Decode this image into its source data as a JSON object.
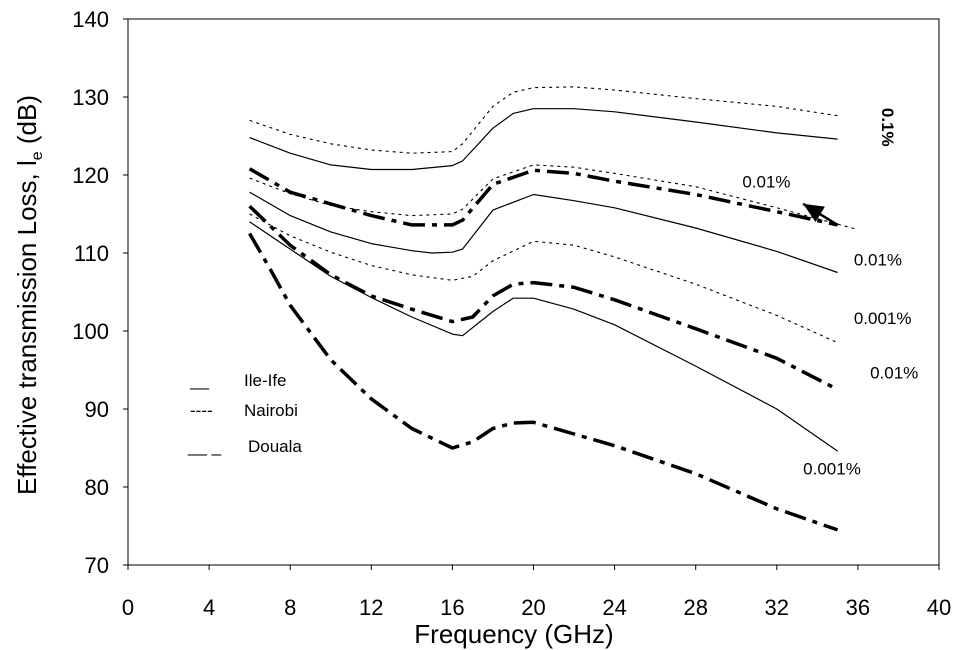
{
  "chart_data": {
    "type": "line",
    "title": "",
    "xlabel": "Frequency (GHz)",
    "ylabel": "Effective transmission Loss, l",
    "ylabel_sub": "e",
    "ylabel_unit": " (dB)",
    "xlim": [
      0,
      40
    ],
    "ylim": [
      70,
      140
    ],
    "xticks": [
      "0",
      "4",
      "8",
      "12",
      "16",
      "20",
      "24",
      "28",
      "32",
      "36",
      "40"
    ],
    "yticks": [
      "70",
      "80",
      "90",
      "100",
      "110",
      "120",
      "130",
      "140"
    ],
    "grid": false,
    "legend_position": "left",
    "legend": [
      {
        "name": "Ile-Ife",
        "marker": "__",
        "style": "solid"
      },
      {
        "name": "Nairobi",
        "marker": "----",
        "style": "dotted"
      },
      {
        "name": "Douala",
        "marker": "__ _",
        "style": "dashdot"
      }
    ],
    "series": [
      {
        "style": "dotted",
        "x": [
          6,
          8,
          10,
          12,
          14,
          16,
          16.5,
          18,
          19,
          20,
          22,
          24,
          28,
          32,
          35
        ],
        "y": [
          127,
          125.2,
          124,
          123.2,
          122.8,
          123,
          124,
          128.8,
          130.6,
          131.2,
          131.3,
          130.9,
          129.8,
          128.8,
          127.6
        ]
      },
      {
        "style": "solid",
        "x": [
          6,
          8,
          10,
          12,
          14,
          16,
          16.5,
          18,
          19,
          20,
          22,
          24,
          28,
          32,
          35
        ],
        "y": [
          124.8,
          122.8,
          121.3,
          120.7,
          120.7,
          121.2,
          121.8,
          126,
          127.9,
          128.5,
          128.5,
          128.1,
          126.8,
          125.4,
          124.6
        ]
      },
      {
        "style": "dotted",
        "x": [
          6,
          8,
          10,
          12,
          14,
          16,
          16.5,
          18,
          20,
          22,
          24,
          28,
          32,
          36
        ],
        "y": [
          119.6,
          117.6,
          116.1,
          115.3,
          114.8,
          115,
          115.6,
          119.5,
          121.3,
          121,
          120.2,
          118.5,
          115.8,
          113
        ]
      },
      {
        "style": "dashdot",
        "x": [
          6,
          8,
          10,
          12,
          14,
          16,
          16.5,
          18,
          20,
          22,
          24,
          28,
          32,
          35
        ],
        "y": [
          120.8,
          117.8,
          116.3,
          114.8,
          113.6,
          113.6,
          114.2,
          118.8,
          120.6,
          120.2,
          119.2,
          117.5,
          115.3,
          113.6
        ]
      },
      {
        "style": "solid",
        "x": [
          6,
          8,
          10,
          12,
          14,
          15,
          16,
          16.5,
          18,
          20,
          22,
          24,
          28,
          32,
          35
        ],
        "y": [
          117.8,
          114.8,
          112.7,
          111.2,
          110.3,
          110,
          110.1,
          110.5,
          115.5,
          117.5,
          116.7,
          115.8,
          113.2,
          110.2,
          107.5
        ]
      },
      {
        "style": "dotted",
        "x": [
          6,
          8,
          10,
          12,
          14,
          16,
          17,
          18,
          20,
          22,
          24,
          28,
          32,
          35
        ],
        "y": [
          115,
          112.2,
          110.1,
          108.4,
          107.2,
          106.5,
          107,
          109,
          111.5,
          111,
          109.5,
          106,
          102,
          98.5
        ]
      },
      {
        "style": "dashdot",
        "x": [
          6,
          7,
          8,
          10,
          12,
          14,
          16,
          17,
          18,
          19,
          20,
          22,
          24,
          28,
          32,
          35
        ],
        "y": [
          116,
          113.5,
          111,
          107.2,
          104.5,
          102.8,
          101.2,
          101.8,
          104.5,
          106,
          106.2,
          105.6,
          104,
          100.3,
          96.5,
          92.5
        ]
      },
      {
        "style": "solid",
        "x": [
          6,
          8,
          10,
          12,
          14,
          16,
          16.5,
          18,
          19,
          20,
          22,
          24,
          28,
          32,
          35
        ],
        "y": [
          114,
          110.5,
          107,
          104.3,
          101.8,
          99.6,
          99.4,
          102.5,
          104.2,
          104.2,
          102.8,
          100.8,
          95.5,
          90,
          84.6
        ]
      },
      {
        "style": "dashdot",
        "x": [
          6,
          7,
          8,
          10,
          12,
          14,
          16,
          17,
          18,
          19,
          20,
          22,
          24,
          28,
          32,
          35
        ],
        "y": [
          112.5,
          108,
          103.3,
          96.3,
          91.3,
          87.5,
          85,
          85.8,
          87.5,
          88.2,
          88.3,
          86.8,
          85.3,
          81.7,
          77.2,
          74.5
        ]
      }
    ],
    "annotations": [
      {
        "text": "0.1%",
        "x": 37.2,
        "y": 128.6,
        "rotate": 90
      },
      {
        "text": "0.01%",
        "x": 30.3,
        "y": 118.4
      },
      {
        "text": "0.01%",
        "x": 35.8,
        "y": 108.4
      },
      {
        "text": "0.001%",
        "x": 35.8,
        "y": 100.9
      },
      {
        "text": "0.01%",
        "x": 36.6,
        "y": 93.9
      },
      {
        "text": "0.001%",
        "x": 33.3,
        "y": 81.6
      }
    ],
    "arrow": {
      "x1": 35.0,
      "y1": 113.6,
      "x2": 33.3,
      "y2": 116.3
    }
  }
}
